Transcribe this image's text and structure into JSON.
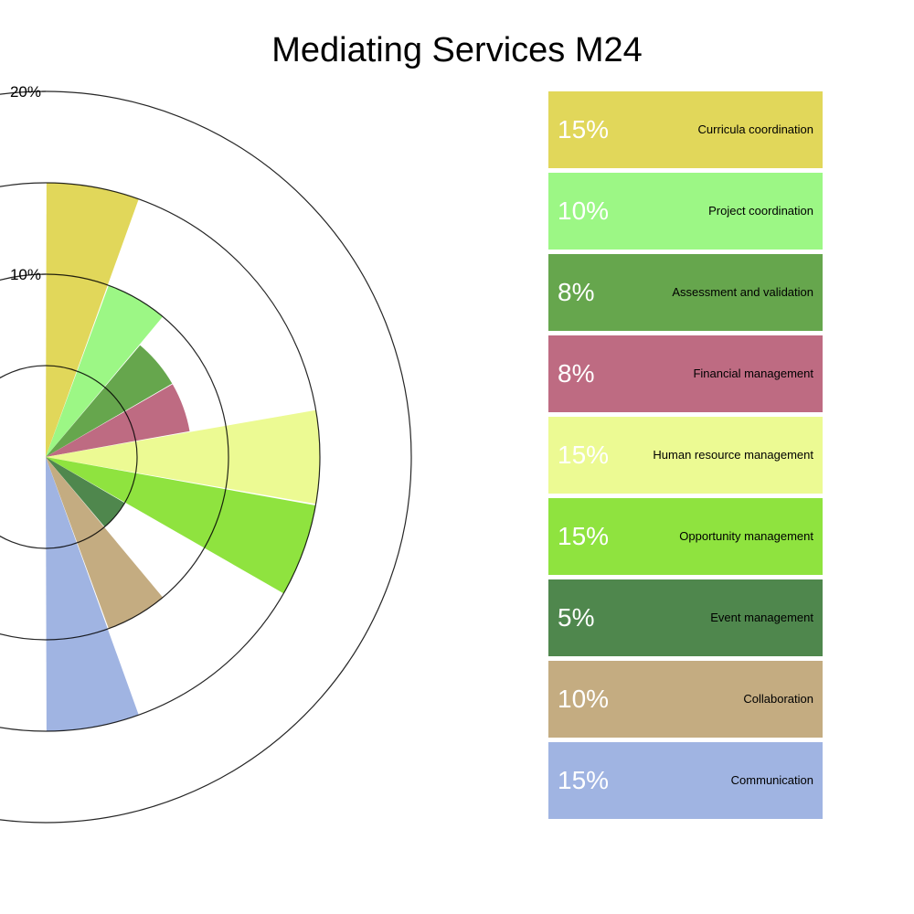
{
  "title": "Mediating Services M24",
  "chart_data": {
    "type": "polar-area",
    "title": "Mediating Services M24",
    "radial_axis": {
      "min": 0,
      "max": 20,
      "unit": "%",
      "tick_labels": [
        "10%",
        "20%"
      ],
      "tick_values": [
        10,
        20
      ]
    },
    "categories": [
      "Curricula coordination",
      "Project coordination",
      "Assessment and validation",
      "Financial management",
      "Human resource management",
      "Opportunity management",
      "Event management",
      "Collaboration",
      "Communication"
    ],
    "values": [
      15,
      10,
      8,
      8,
      15,
      15,
      5,
      10,
      15
    ],
    "value_labels": [
      "15%",
      "10%",
      "8%",
      "8%",
      "15%",
      "15%",
      "5%",
      "10%",
      "15%"
    ],
    "colors": [
      "#e1d75a",
      "#9cf785",
      "#66a64d",
      "#be6b82",
      "#ecfa93",
      "#8fe33f",
      "#4f874d",
      "#c4ac81",
      "#a0b4e2"
    ],
    "legend_position": "right"
  }
}
